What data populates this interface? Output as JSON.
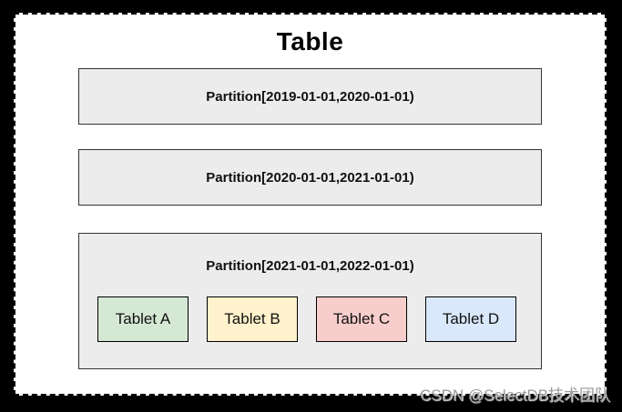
{
  "diagram": {
    "title": "Table",
    "partitions": [
      {
        "label": "Partition[2019-01-01,2020-01-01)"
      },
      {
        "label": "Partition[2020-01-01,2021-01-01)"
      },
      {
        "label": "Partition[2021-01-01,2022-01-01)"
      }
    ],
    "tablets": [
      {
        "label": "Tablet A",
        "fill": "#d5e8d4"
      },
      {
        "label": "Tablet B",
        "fill": "#fff2cc"
      },
      {
        "label": "Tablet C",
        "fill": "#f8cecc"
      },
      {
        "label": "Tablet D",
        "fill": "#dae8fc"
      }
    ],
    "colors": {
      "partition_fill": "#ececec",
      "partition_border": "#333333",
      "tablet_border": "#000000",
      "canvas_background": "#ffffff",
      "frame_background": "#000000"
    },
    "watermark": "CSDN @SelectDB技术团队"
  }
}
